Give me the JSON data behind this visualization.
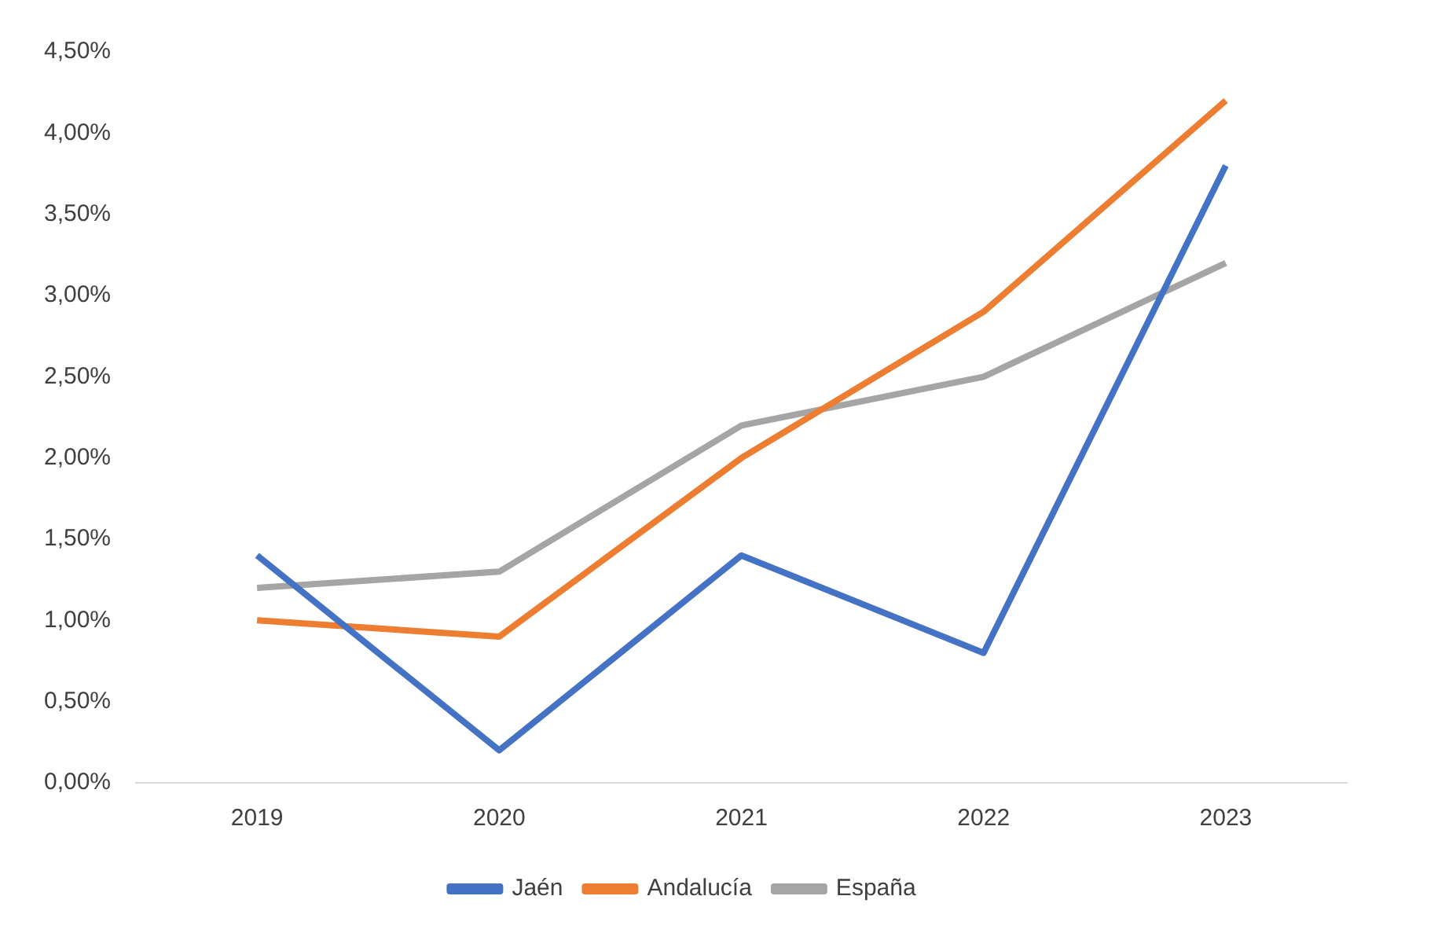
{
  "chart_data": {
    "type": "line",
    "categories": [
      "2019",
      "2020",
      "2021",
      "2022",
      "2023"
    ],
    "series": [
      {
        "name": "Jaén",
        "color": "#4472c4",
        "values": [
          1.4,
          0.2,
          1.4,
          0.8,
          3.8
        ]
      },
      {
        "name": "Andalucía",
        "color": "#ed7d31",
        "values": [
          1.0,
          0.9,
          2.0,
          2.9,
          4.2
        ]
      },
      {
        "name": "España",
        "color": "#a5a5a5",
        "values": [
          1.2,
          1.3,
          2.2,
          2.5,
          3.2
        ]
      }
    ],
    "ylim": [
      0,
      4.5
    ],
    "yticks": [
      {
        "value": 0,
        "label": "0,00%"
      },
      {
        "value": 0.5,
        "label": "0,50%"
      },
      {
        "value": 1,
        "label": "1,00%"
      },
      {
        "value": 1.5,
        "label": "1,50%"
      },
      {
        "value": 2,
        "label": "2,00%"
      },
      {
        "value": 2.5,
        "label": "2,50%"
      },
      {
        "value": 3,
        "label": "3,00%"
      },
      {
        "value": 3.5,
        "label": "3,50%"
      },
      {
        "value": 4,
        "label": "4,00%"
      },
      {
        "value": 4.5,
        "label": "4,50%"
      }
    ],
    "grid": false,
    "legend": "bottom",
    "marker": "none",
    "line_style": "solid"
  }
}
